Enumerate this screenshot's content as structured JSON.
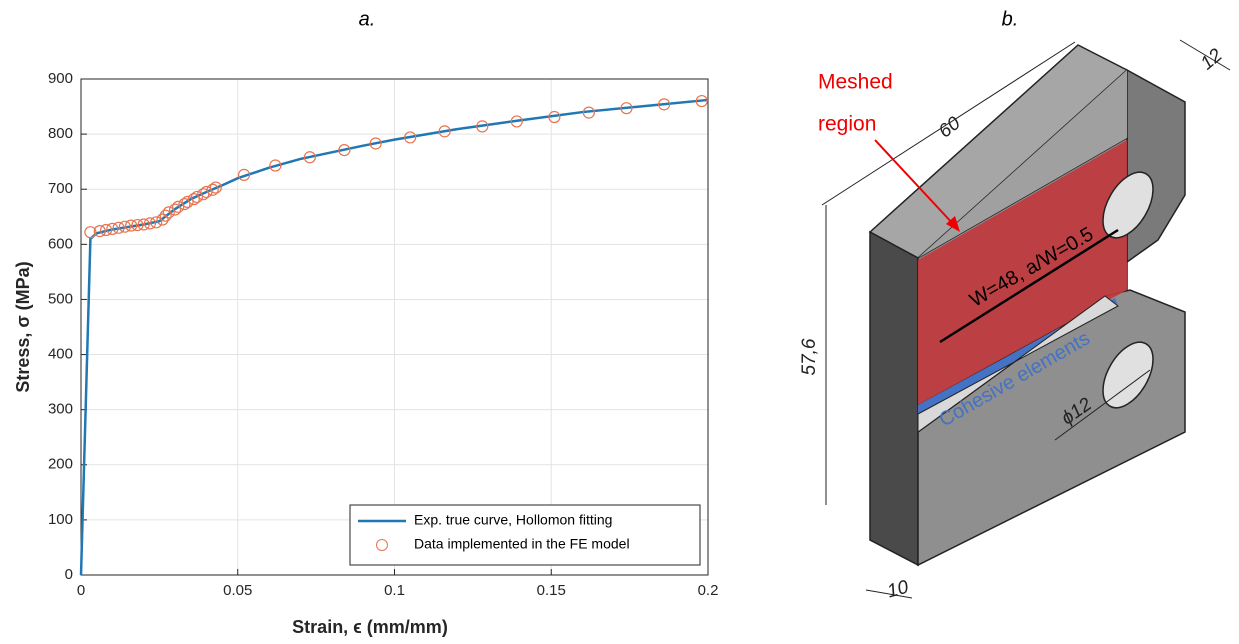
{
  "figure": {
    "panel_a": "a.",
    "panel_b": "b."
  },
  "chart_data": {
    "type": "line",
    "xlabel": "Strain, ϵ (mm/mm)",
    "ylabel": "Stress, σ (MPa)",
    "xlim": [
      0,
      0.2
    ],
    "ylim": [
      0,
      900
    ],
    "xticks": [
      0,
      0.05,
      0.1,
      0.15,
      0.2
    ],
    "yticks": [
      0,
      100,
      200,
      300,
      400,
      500,
      600,
      700,
      800,
      900
    ],
    "grid": true,
    "legend": "lower right",
    "series": [
      {
        "name": "Exp. true curve, Hollomon fitting",
        "color": "#1f77b4",
        "marker": "none",
        "x": [
          0,
          0.003,
          0.005,
          0.01,
          0.02,
          0.025,
          0.03,
          0.035,
          0.04,
          0.045,
          0.05,
          0.06,
          0.07,
          0.08,
          0.09,
          0.1,
          0.12,
          0.14,
          0.16,
          0.18,
          0.2
        ],
        "values": [
          0,
          610,
          620,
          627,
          636,
          642,
          664,
          682,
          695,
          707,
          720,
          739,
          755,
          767,
          779,
          790,
          809,
          825,
          840,
          851,
          862
        ]
      },
      {
        "name": "Data implemented in the FE model",
        "color": "#e8734f",
        "marker": "circle",
        "x": [
          0.003,
          0.006,
          0.008,
          0.01,
          0.012,
          0.014,
          0.016,
          0.018,
          0.02,
          0.022,
          0.024,
          0.026,
          0.027,
          0.028,
          0.03,
          0.031,
          0.033,
          0.034,
          0.036,
          0.037,
          0.039,
          0.04,
          0.042,
          0.043,
          0.052,
          0.062,
          0.073,
          0.084,
          0.094,
          0.105,
          0.116,
          0.128,
          0.139,
          0.151,
          0.162,
          0.174,
          0.186,
          0.198
        ],
        "values": [
          622,
          624,
          626,
          628,
          630,
          632,
          634,
          635,
          636,
          638,
          640,
          645,
          652,
          658,
          663,
          668,
          673,
          677,
          682,
          686,
          691,
          695,
          699,
          703,
          726,
          743,
          758,
          771,
          783,
          794,
          805,
          814,
          823,
          831,
          839,
          847,
          854,
          860
        ]
      }
    ]
  },
  "diagram": {
    "meshed_line1": "Meshed",
    "meshed_line2": "region",
    "length": "60",
    "thickness_top": "12",
    "height": "57,6",
    "width_label": "W=48, a/W=0.5",
    "cohesive": "Cohesive elements",
    "hole": "ϕ12",
    "thickness_bottom": "10"
  }
}
